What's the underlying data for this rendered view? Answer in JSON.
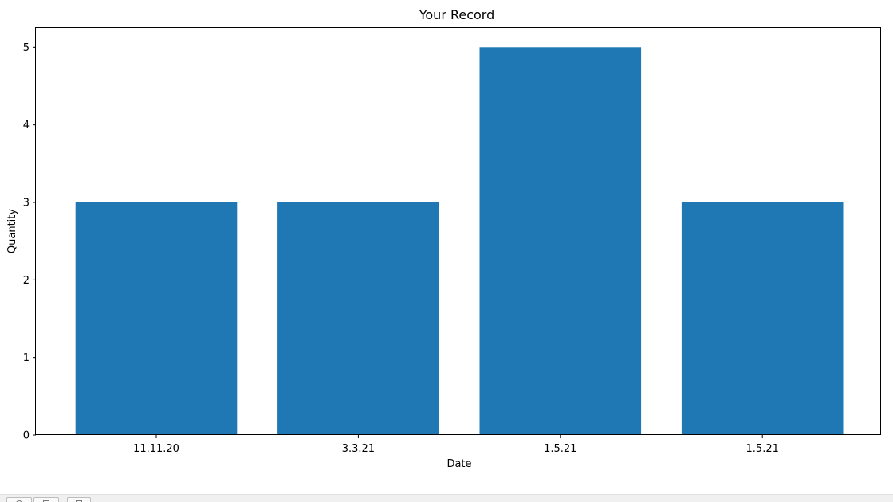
{
  "chart_data": {
    "type": "bar",
    "title": "Your Record",
    "xlabel": "Date",
    "ylabel": "Quantity",
    "categories": [
      "11.11.20",
      "3.3.21",
      "1.5.21",
      "1.5.21"
    ],
    "values": [
      3,
      3,
      5,
      3
    ],
    "ylim": [
      0,
      5.25
    ],
    "yticks": [
      0,
      1,
      2,
      3,
      4,
      5
    ],
    "bar_color": "#1f77b4",
    "grid": false,
    "legend": false
  },
  "toolbar": {
    "icons": [
      "home-icon",
      "back-icon",
      "forward-icon"
    ]
  }
}
